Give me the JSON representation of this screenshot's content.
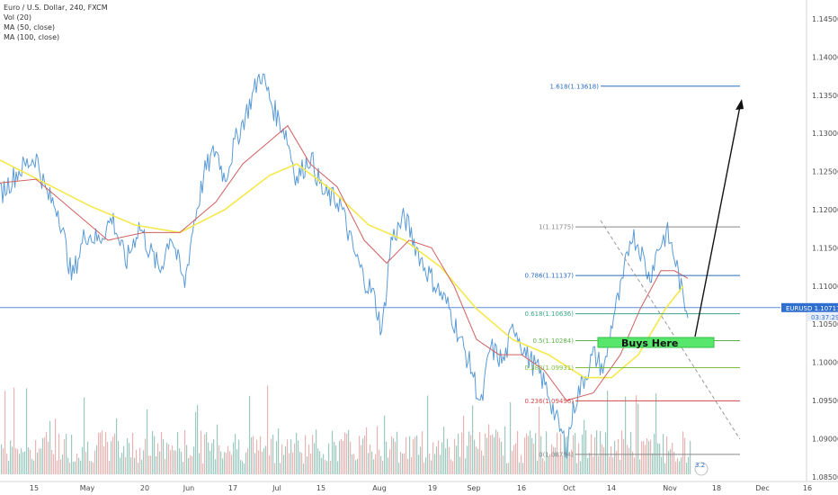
{
  "legend": {
    "symbol": "Euro / U.S. Dollar, 240, FXCM",
    "volume": "Vol (20)",
    "ma50": "MA (50, close)",
    "ma100": "MA (100, close)"
  },
  "price_tag": {
    "label": "EURUSD",
    "price": "1.10717",
    "countdown": "03:37:29"
  },
  "buys_label": "Buys Here",
  "badge": "3.2",
  "colors": {
    "candle": "#5b9bd5",
    "ma50": "#d06060",
    "ma100": "#f5e84a",
    "vol_up": "#79b8a9",
    "vol_down": "#e69a9a",
    "buy_zone": "#59e66c",
    "price_line": "#4c7fd4"
  },
  "chart_data": {
    "type": "line",
    "title": "Euro / U.S. Dollar, 240, FXCM",
    "ylim": [
      1.0845,
      1.149
    ],
    "x_ticks": [
      "15",
      "May",
      "20",
      "Jun",
      "17",
      "Jul",
      "15",
      "Aug",
      "19",
      "Sep",
      "16",
      "Oct",
      "14",
      "Nov",
      "18",
      "Dec",
      "16"
    ],
    "y_ticks": [
      "1.14500",
      "1.14000",
      "1.13500",
      "1.13000",
      "1.12500",
      "1.12000",
      "1.11500",
      "1.11000",
      "1.10500",
      "1.10000",
      "1.09500",
      "1.09000",
      "1.08500"
    ],
    "series": [
      {
        "name": "Euro / U.S. Dollar",
        "points": [
          [
            0,
            1.122
          ],
          [
            20,
            1.125
          ],
          [
            40,
            1.127
          ],
          [
            52,
            1.122
          ],
          [
            65,
            1.12
          ],
          [
            80,
            1.111
          ],
          [
            95,
            1.117
          ],
          [
            110,
            1.116
          ],
          [
            125,
            1.119
          ],
          [
            140,
            1.113
          ],
          [
            155,
            1.118
          ],
          [
            165,
            1.115
          ],
          [
            178,
            1.112
          ],
          [
            190,
            1.117
          ],
          [
            205,
            1.11
          ],
          [
            215,
            1.118
          ],
          [
            228,
            1.125
          ],
          [
            240,
            1.128
          ],
          [
            250,
            1.124
          ],
          [
            262,
            1.129
          ],
          [
            275,
            1.133
          ],
          [
            290,
            1.138
          ],
          [
            305,
            1.133
          ],
          [
            318,
            1.13
          ],
          [
            330,
            1.124
          ],
          [
            345,
            1.127
          ],
          [
            360,
            1.122
          ],
          [
            378,
            1.121
          ],
          [
            392,
            1.115
          ],
          [
            405,
            1.111
          ],
          [
            415,
            1.109
          ],
          [
            425,
            1.104
          ],
          [
            435,
            1.116
          ],
          [
            450,
            1.119
          ],
          [
            460,
            1.116
          ],
          [
            470,
            1.113
          ],
          [
            485,
            1.11
          ],
          [
            500,
            1.107
          ],
          [
            515,
            1.102
          ],
          [
            525,
            1.099
          ],
          [
            535,
            1.094
          ],
          [
            545,
            1.102
          ],
          [
            560,
            1.1
          ],
          [
            572,
            1.105
          ],
          [
            585,
            1.101
          ],
          [
            598,
            1.099
          ],
          [
            610,
            1.096
          ],
          [
            620,
            1.092
          ],
          [
            630,
            1.089
          ],
          [
            640,
            1.095
          ],
          [
            650,
            1.098
          ],
          [
            660,
            1.101
          ],
          [
            672,
            1.099
          ],
          [
            682,
            1.106
          ],
          [
            692,
            1.11
          ],
          [
            702,
            1.117
          ],
          [
            712,
            1.115
          ],
          [
            722,
            1.111
          ],
          [
            732,
            1.115
          ],
          [
            742,
            1.117
          ],
          [
            752,
            1.113
          ],
          [
            760,
            1.108
          ],
          [
            765,
            1.107
          ]
        ]
      },
      {
        "name": "MA (50, close)",
        "points": [
          [
            0,
            1.1235
          ],
          [
            40,
            1.124
          ],
          [
            80,
            1.12
          ],
          [
            120,
            1.116
          ],
          [
            160,
            1.117
          ],
          [
            200,
            1.117
          ],
          [
            240,
            1.121
          ],
          [
            270,
            1.126
          ],
          [
            300,
            1.129
          ],
          [
            320,
            1.131
          ],
          [
            345,
            1.126
          ],
          [
            375,
            1.123
          ],
          [
            405,
            1.116
          ],
          [
            430,
            1.113
          ],
          [
            455,
            1.116
          ],
          [
            480,
            1.115
          ],
          [
            505,
            1.11
          ],
          [
            530,
            1.103
          ],
          [
            555,
            1.101
          ],
          [
            580,
            1.101
          ],
          [
            605,
            1.099
          ],
          [
            630,
            1.095
          ],
          [
            660,
            1.096
          ],
          [
            690,
            1.101
          ],
          [
            712,
            1.107
          ],
          [
            735,
            1.112
          ],
          [
            750,
            1.112
          ],
          [
            765,
            1.111
          ]
        ]
      },
      {
        "name": "MA (100, close)",
        "points": [
          [
            0,
            1.1265
          ],
          [
            50,
            1.1235
          ],
          [
            100,
            1.1205
          ],
          [
            150,
            1.118
          ],
          [
            200,
            1.117
          ],
          [
            250,
            1.12
          ],
          [
            300,
            1.1245
          ],
          [
            330,
            1.126
          ],
          [
            370,
            1.1225
          ],
          [
            410,
            1.118
          ],
          [
            450,
            1.116
          ],
          [
            490,
            1.1125
          ],
          [
            530,
            1.107
          ],
          [
            570,
            1.103
          ],
          [
            610,
            1.101
          ],
          [
            650,
            1.098
          ],
          [
            680,
            1.098
          ],
          [
            710,
            1.101
          ],
          [
            740,
            1.107
          ],
          [
            760,
            1.11
          ]
        ]
      }
    ],
    "fibonacci": [
      {
        "ratio": "1",
        "price": "1.11775",
        "label": "1(1.11775)"
      },
      {
        "ratio": "0.786",
        "price": "1.11137",
        "label": "0.786(1.11137)"
      },
      {
        "ratio": "0.618",
        "price": "1.10636",
        "label": "0.618(1.10636)"
      },
      {
        "ratio": "0.5",
        "price": "1.10284",
        "label": "0.5(1.10284)"
      },
      {
        "ratio": "0.382",
        "price": "1.09931",
        "label": "0.382(1.09931)"
      },
      {
        "ratio": "0.236",
        "price": "1.09496",
        "label": "0.236(1.09496)"
      },
      {
        "ratio": "0",
        "price": "1.08794",
        "label": "0(1.08794)"
      },
      {
        "ratio": "1.618",
        "price": "1.13618",
        "label": "1.618(1.13618)"
      }
    ],
    "last_price": 1.10717,
    "grid": false
  }
}
